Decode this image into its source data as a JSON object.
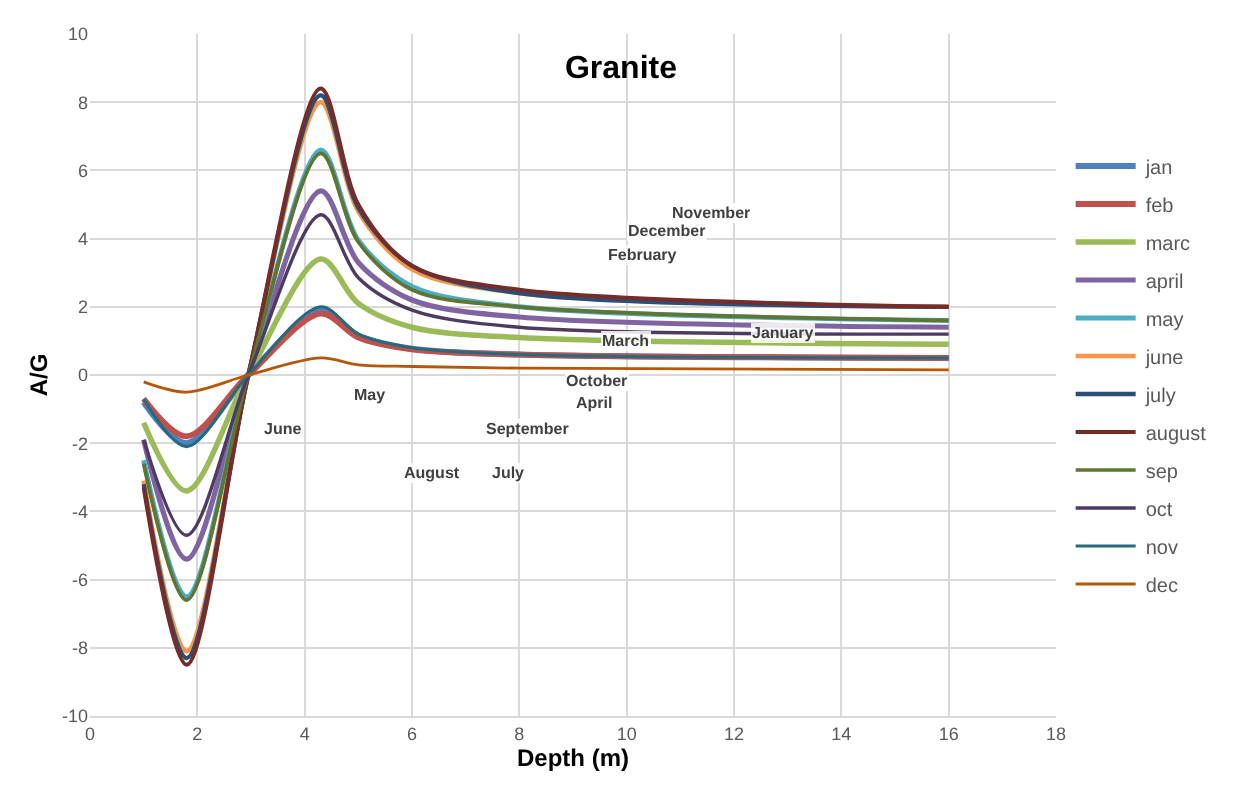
{
  "chart_data": {
    "type": "line",
    "title": "Granite",
    "xlabel": "Depth (m)",
    "ylabel": "A/G",
    "x": [
      1,
      1.8,
      2.95,
      4.3,
      5,
      6,
      8,
      16
    ],
    "xlim": [
      0,
      18
    ],
    "xticks": [
      0,
      2,
      4,
      6,
      8,
      10,
      12,
      14,
      16,
      18
    ],
    "ylim": [
      -10,
      10
    ],
    "yticks": [
      -10,
      -8,
      -6,
      -4,
      -2,
      0,
      2,
      4,
      6,
      8,
      10
    ],
    "grid": true,
    "legend": "right",
    "marker": "none",
    "line_style": "solid",
    "series": [
      {
        "name": "jan",
        "color": "#4f81bd",
        "values": [
          -0.8,
          -2.0,
          0,
          1.9,
          1.16,
          0.77,
          0.6,
          0.5
        ]
      },
      {
        "name": "feb",
        "color": "#c0504d",
        "values": [
          -0.7,
          -1.8,
          0,
          1.8,
          1.1,
          0.75,
          0.6,
          0.5
        ]
      },
      {
        "name": "marc",
        "color": "#9bbb59",
        "values": [
          -1.4,
          -3.4,
          0,
          3.4,
          2.1,
          1.4,
          1.1,
          0.9
        ]
      },
      {
        "name": "april",
        "color": "#8064a2",
        "values": [
          -1.9,
          -5.4,
          0,
          5.4,
          3.3,
          2.2,
          1.7,
          1.4
        ]
      },
      {
        "name": "may",
        "color": "#4bacc6",
        "values": [
          -2.5,
          -6.5,
          0,
          6.6,
          3.95,
          2.6,
          2.0,
          1.6
        ]
      },
      {
        "name": "june",
        "color": "#f79646",
        "values": [
          -3.1,
          -8.1,
          0,
          8.0,
          4.8,
          3.1,
          2.4,
          2.0
        ]
      },
      {
        "name": "july",
        "color": "#2c4d75",
        "values": [
          -3.2,
          -8.3,
          0,
          8.2,
          4.9,
          3.2,
          2.4,
          2.0
        ]
      },
      {
        "name": "august",
        "color": "#772c2a",
        "values": [
          -3.3,
          -8.5,
          0,
          8.4,
          5.0,
          3.2,
          2.5,
          2.0
        ]
      },
      {
        "name": "sep",
        "color": "#5f7530",
        "values": [
          -2.6,
          -6.6,
          0,
          6.5,
          3.9,
          2.5,
          2.0,
          1.6
        ]
      },
      {
        "name": "oct",
        "color": "#4d3b62",
        "values": [
          -1.9,
          -4.7,
          0,
          4.7,
          2.85,
          1.9,
          1.4,
          1.2
        ]
      },
      {
        "name": "nov",
        "color": "#276a7c",
        "values": [
          -0.7,
          -2.1,
          0,
          2.0,
          1.2,
          0.8,
          0.6,
          0.5
        ]
      },
      {
        "name": "dec",
        "color": "#b65708",
        "values": [
          -0.2,
          -0.5,
          0,
          0.5,
          0.3,
          0.25,
          0.2,
          0.15
        ]
      }
    ],
    "annotations": [
      "November",
      "December",
      "February",
      "March",
      "January",
      "October",
      "April",
      "September",
      "August",
      "July",
      "May",
      "June"
    ]
  }
}
